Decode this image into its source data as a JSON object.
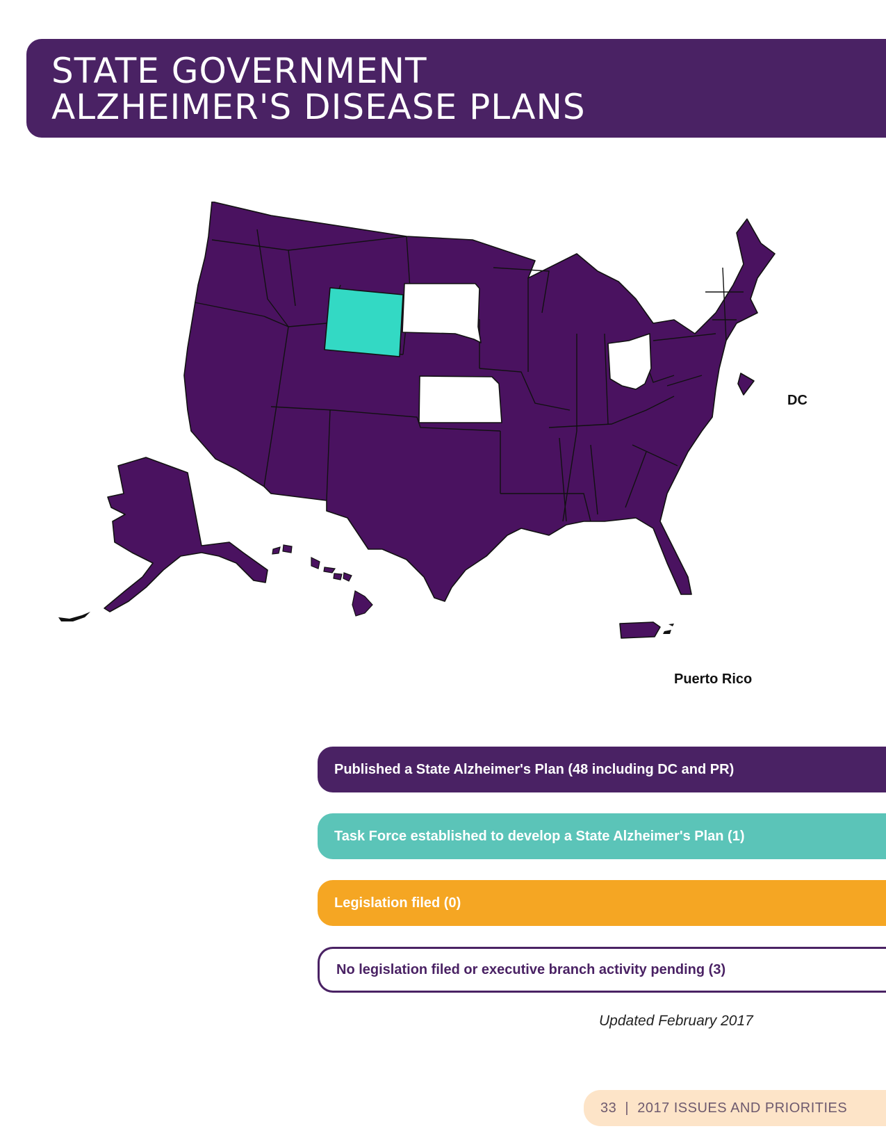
{
  "title": {
    "line1": "STATE GOVERNMENT",
    "line2": "ALZHEIMER'S DISEASE PLANS"
  },
  "colors": {
    "published": "#4a2264",
    "task_force": "#33d9c4",
    "legislation": "#f5a623",
    "none": "#ffffff"
  },
  "map": {
    "labels": {
      "dc": "DC",
      "pr": "Puerto Rico"
    },
    "status_by_state": {
      "WY": "task_force",
      "SD": "none",
      "KS": "none",
      "OH": "none",
      "other": "published"
    }
  },
  "legend": {
    "published": "Published a State Alzheimer's Plan (48 including DC and PR)",
    "task_force": "Task Force established to develop a State Alzheimer's Plan (1)",
    "legislation": "Legislation filed (0)",
    "none": "No legislation filed or executive branch activity pending (3)"
  },
  "updated": "Updated February 2017",
  "footer": {
    "page_number": "33",
    "separator": "|",
    "publication": "2017 ISSUES AND PRIORITIES"
  }
}
